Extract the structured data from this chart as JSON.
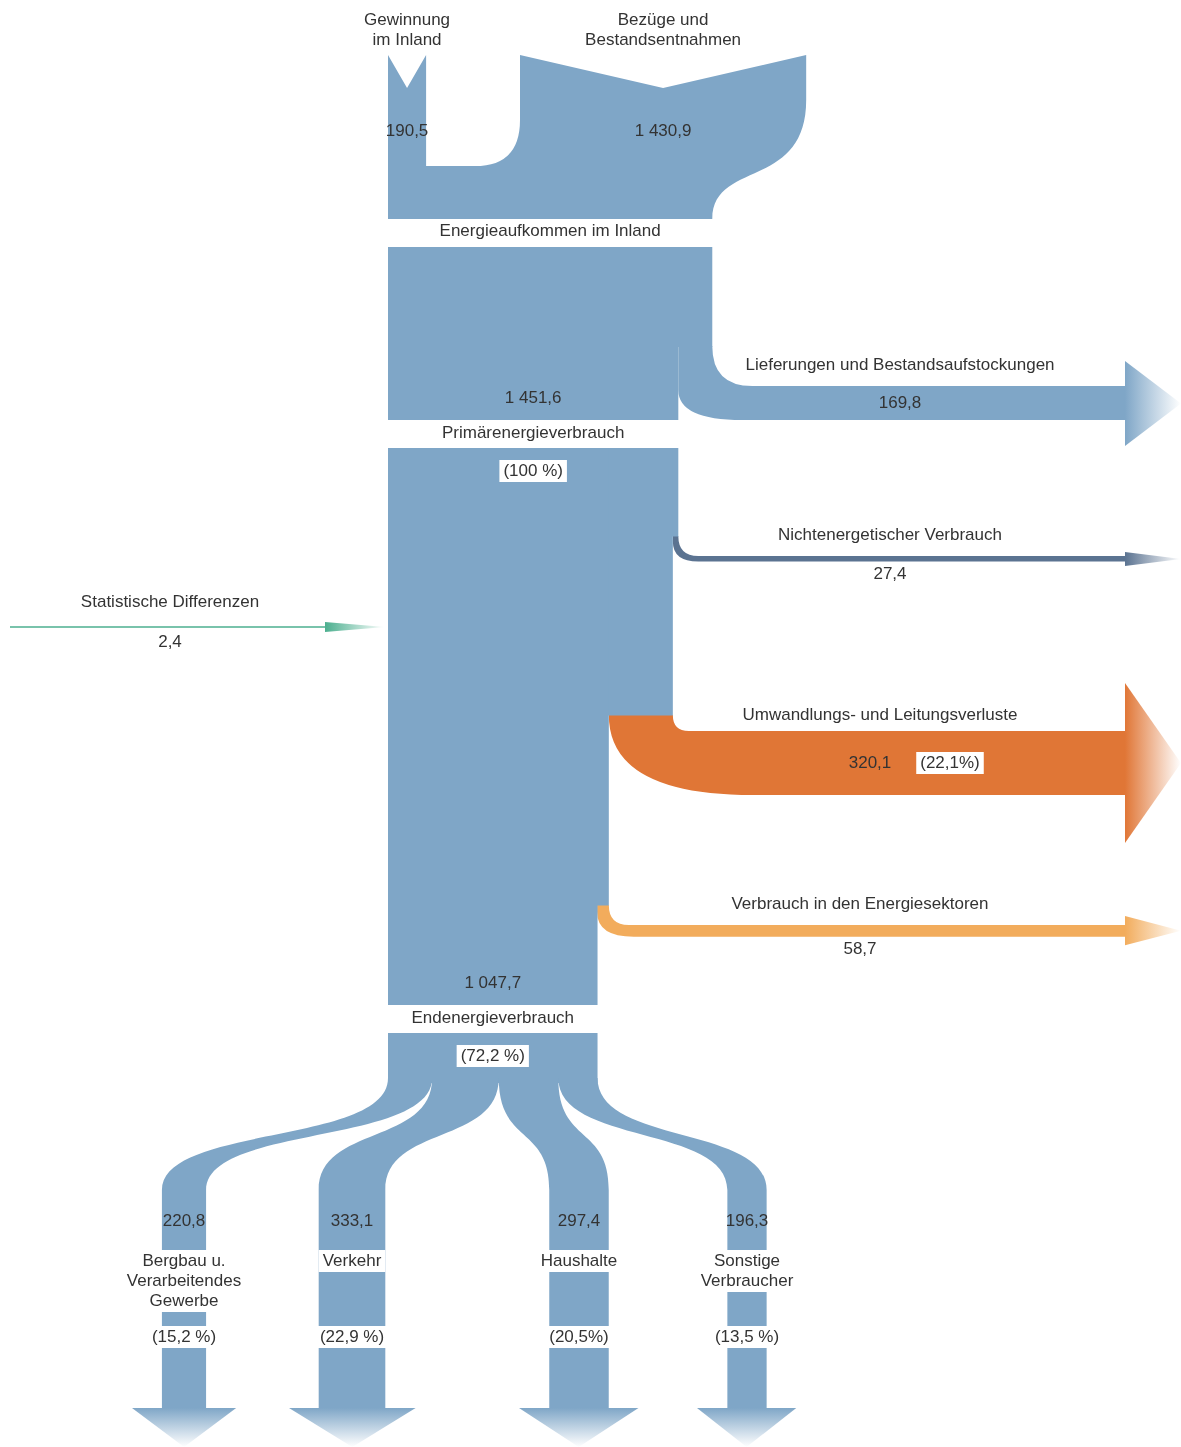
{
  "chart_data": {
    "type": "other",
    "categories": [
      "Gewinnung im Inland",
      "Bezüge und Bestandsentnahmen",
      "Energieaufkommen im Inland",
      "Lieferungen und Bestandsaufstockungen",
      "Primärenergieverbrauch",
      "Nichtenergetischer Verbrauch",
      "Statistische Differenzen",
      "Umwandlungs- und Leitungsverluste",
      "Verbrauch in den Energiesektoren",
      "Endenergieverbrauch",
      "Bergbau u. Verarbeitendes Gewerbe",
      "Verkehr",
      "Haushalte",
      "Sonstige Verbraucher"
    ],
    "values": [
      190.5,
      1430.9,
      null,
      169.8,
      1451.6,
      27.4,
      2.4,
      320.1,
      58.7,
      1047.7,
      220.8,
      333.1,
      297.4,
      196.3
    ],
    "value_labels": [
      "190,5",
      "1 430,9",
      null,
      "169,8",
      "1 451,6",
      "27,4",
      "2,4",
      "320,1",
      "58,7",
      "1 047,7",
      "220,8",
      "333,1",
      "297,4",
      "196,3"
    ],
    "colors": [
      "#7fa6c7",
      "#7fa6c7",
      "#7fa6c7",
      "#7fa6c7",
      "#7fa6c7",
      "#5b7391",
      "#4caf8f",
      "#e07636",
      "#f2ac5c",
      "#7fa6c7",
      "#7fa6c7",
      "#7fa6c7",
      "#7fa6c7",
      "#7fa6c7"
    ],
    "annotations": [
      {
        "text": "(100 %)",
        "x": "Primärenergieverbrauch"
      },
      {
        "text": "(22,1%)",
        "x": "Umwandlungs- und Leitungsverluste"
      },
      {
        "text": "(72,2 %)",
        "x": "Endenergieverbrauch"
      },
      {
        "text": "(15,2 %)",
        "x": "Bergbau u. Verarbeitendes Gewerbe"
      },
      {
        "text": "(22,9 %)",
        "x": "Verkehr"
      },
      {
        "text": "(20,5%)",
        "x": "Haushalte"
      },
      {
        "text": "(13,5 %)",
        "x": "Sonstige Verbraucher"
      }
    ]
  }
}
